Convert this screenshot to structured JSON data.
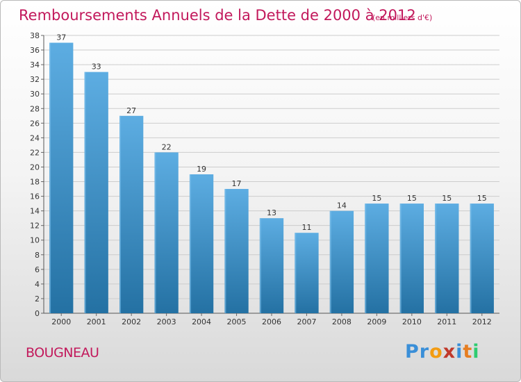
{
  "header": {
    "title": "Remboursements Annuels de la Dette de 2000 à 2012",
    "unit": "(en milliers d'€)"
  },
  "footer": {
    "commune": "BOUGNEAU",
    "brand_letters": [
      "P",
      "r",
      "o",
      "x",
      "i",
      "t",
      "i"
    ],
    "brand_colors": [
      "#3a8fd8",
      "#3a8fd8",
      "#f39c12",
      "#c0392b",
      "#3a8fd8",
      "#e67e22",
      "#2ecc71"
    ]
  },
  "colors": {
    "bar_top": "#5dade2",
    "bar_bottom": "#2471a3",
    "bar_side": "#7fc1ec",
    "grid": "#cccccc",
    "title": "#c2185b"
  },
  "chart_data": {
    "type": "bar",
    "title": "Remboursements Annuels de la Dette de 2000 à 2012",
    "subtitle": "(en milliers d'€)",
    "xlabel": "",
    "ylabel": "",
    "categories": [
      "2000",
      "2001",
      "2002",
      "2003",
      "2004",
      "2005",
      "2006",
      "2007",
      "2008",
      "2009",
      "2010",
      "2011",
      "2012"
    ],
    "values": [
      37,
      33,
      27,
      22,
      19,
      17,
      13,
      11,
      14,
      15,
      15,
      15,
      15
    ],
    "ylim": [
      0,
      38
    ],
    "yticks": [
      0,
      2,
      4,
      6,
      8,
      10,
      12,
      14,
      16,
      18,
      20,
      22,
      24,
      26,
      28,
      30,
      32,
      34,
      36,
      38
    ],
    "grid": true
  }
}
